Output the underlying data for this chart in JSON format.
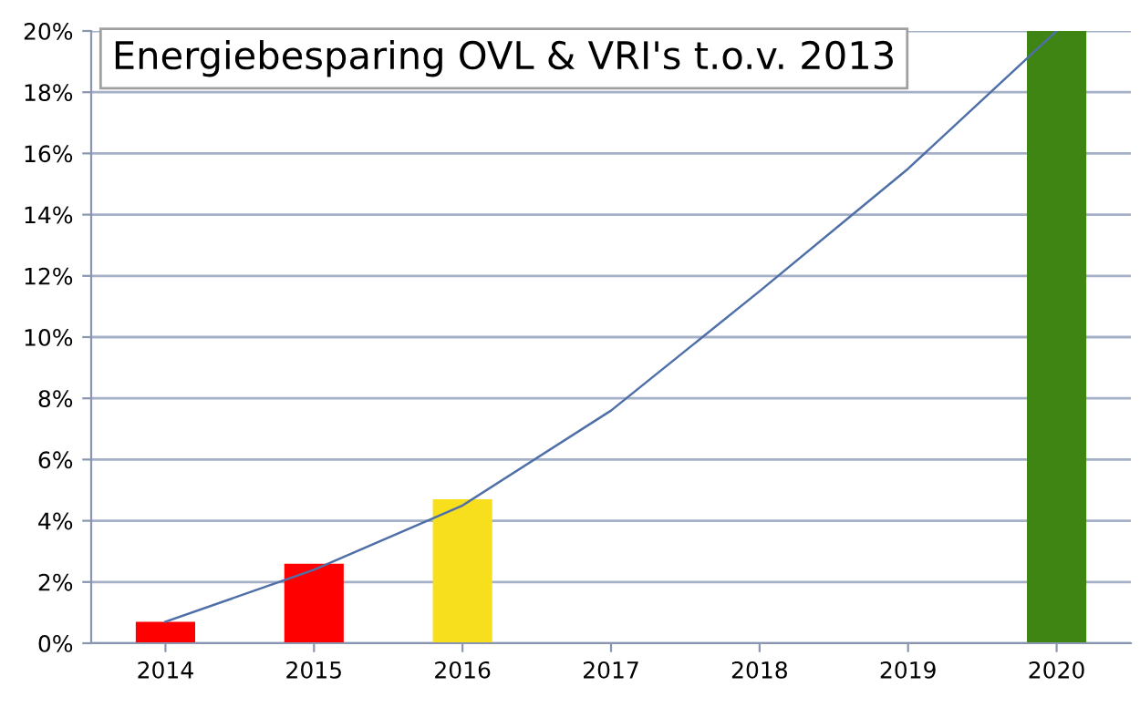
{
  "chart_data": {
    "type": "bar",
    "title": "Energiebesparing OVL & VRI's t.o.v. 2013",
    "categories": [
      "2014",
      "2015",
      "2016",
      "2017",
      "2018",
      "2019",
      "2020"
    ],
    "series": [
      {
        "colors": [
          "#ff0000",
          "#ff0000",
          "#f7df1e",
          null,
          null,
          null,
          "#3f8514"
        ],
        "values": [
          0.7,
          2.6,
          4.7,
          null,
          null,
          null,
          20
        ]
      },
      {
        "type": "line",
        "color": "#4f6fa8",
        "values": [
          0.7,
          2.4,
          4.5,
          7.6,
          11.5,
          15.5,
          20
        ]
      }
    ],
    "ylim": [
      0,
      20
    ],
    "yticks": [
      {
        "value": 0,
        "label": "0%"
      },
      {
        "value": 2,
        "label": "2%"
      },
      {
        "value": 4,
        "label": "4%"
      },
      {
        "value": 6,
        "label": "6%"
      },
      {
        "value": 8,
        "label": "8%"
      },
      {
        "value": 10,
        "label": "10%"
      },
      {
        "value": 12,
        "label": "12%"
      },
      {
        "value": 14,
        "label": "14%"
      },
      {
        "value": 16,
        "label": "16%"
      },
      {
        "value": 18,
        "label": "18%"
      },
      {
        "value": 20,
        "label": "20%"
      }
    ],
    "grid": "y",
    "line_style": "solid",
    "marker": "none",
    "legend": false
  }
}
